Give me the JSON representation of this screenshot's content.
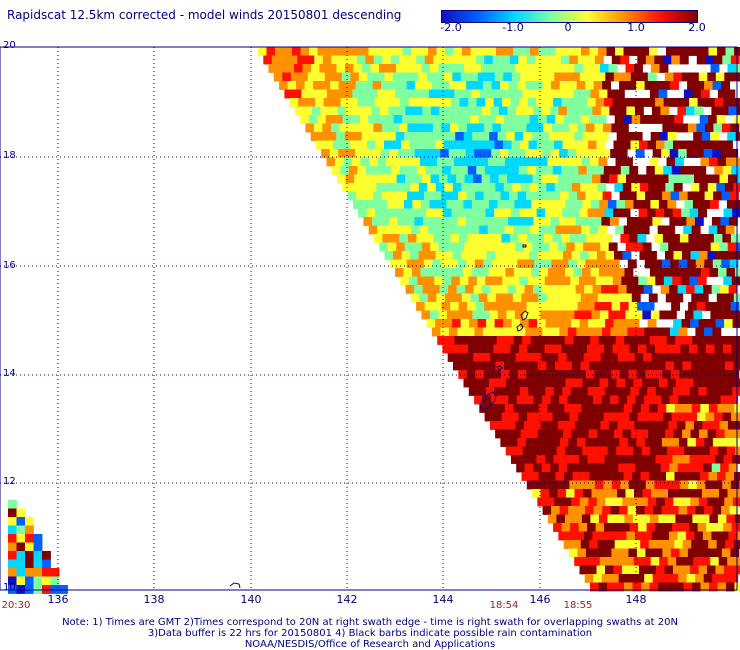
{
  "title": "Rapidscat 12.5km corrected - model winds 20150801 descending",
  "colorbar": {
    "ticks": [
      "-2.0",
      "-1.0",
      "0",
      "1.0",
      "2.0"
    ],
    "colors": [
      "#1010c0",
      "#0060ff",
      "#00d8ff",
      "#80ffa0",
      "#ffff30",
      "#ff9000",
      "#ff1000",
      "#800000"
    ]
  },
  "lat_labels": [
    "20",
    "18",
    "16",
    "14",
    "12",
    "10"
  ],
  "lon_labels": [
    "136",
    "138",
    "140",
    "142",
    "144",
    "146",
    "148"
  ],
  "time_labels": [
    "20:30",
    "18:54",
    "18:55"
  ],
  "notes": [
    "Note: 1) Times are GMT 2)Times correspond to 20N at right swath edge - time is right swath for overlapping swaths at 20N",
    "3)Data buffer is 22 hrs for 20150801 4) Black barbs indicate possible rain contamination",
    "NOAA/NESDIS/Office of Research and Applications"
  ],
  "map": {
    "lon_range": [
      135,
      150
    ],
    "lat_range": [
      10,
      20
    ],
    "features": [
      "Guam",
      "Mariana Islands"
    ]
  }
}
